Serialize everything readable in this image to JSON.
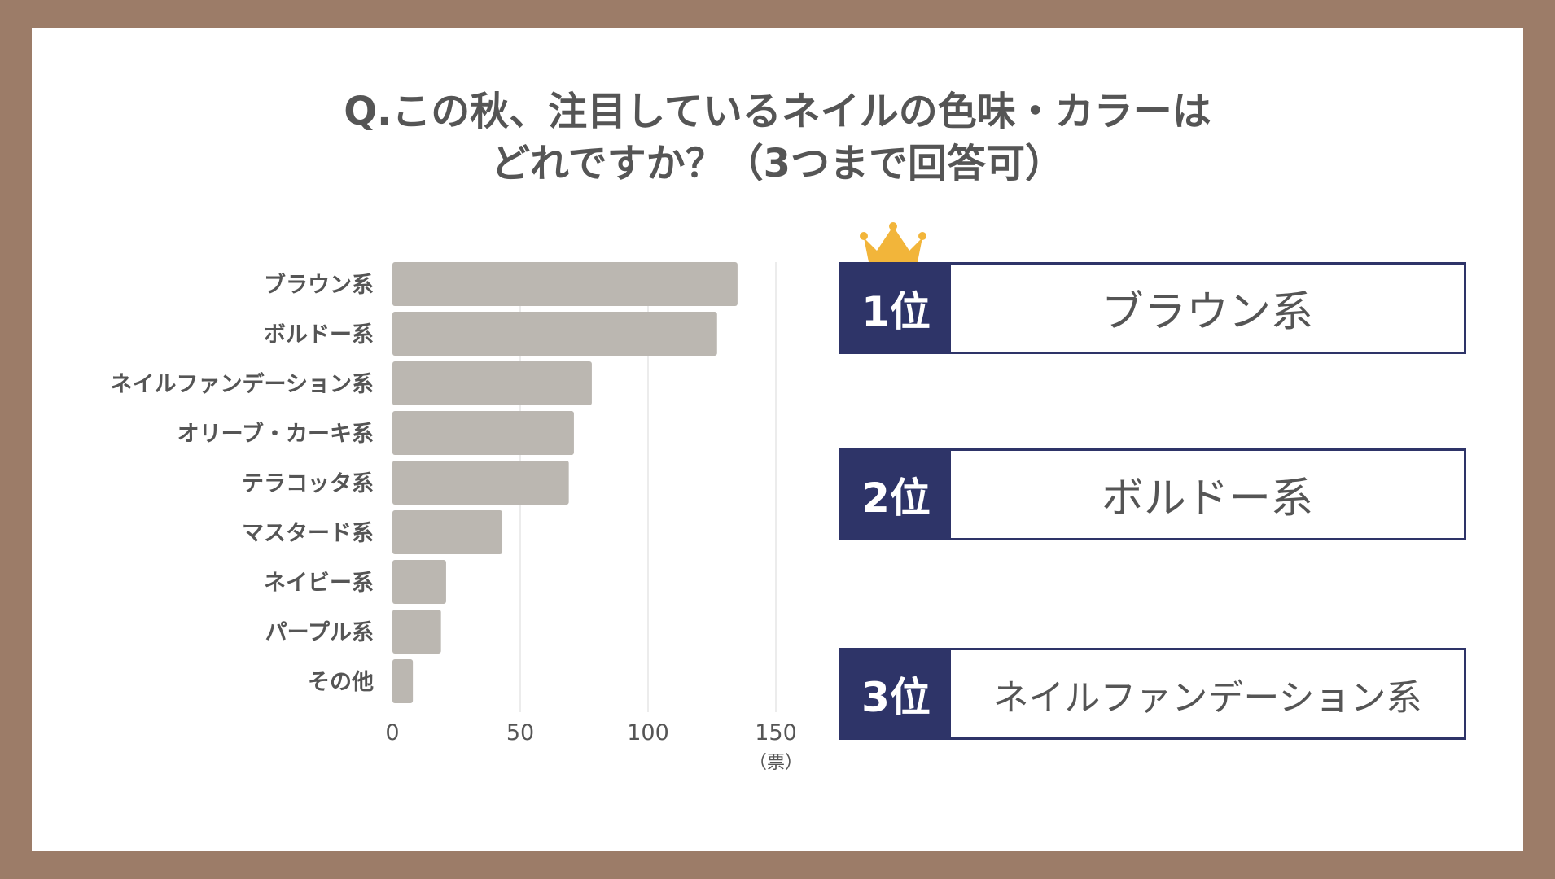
{
  "title": {
    "line1": "Q.この秋、注目しているネイルの色味・カラーは",
    "line2": "どれですか？（3つまで回答可）"
  },
  "chart_data": {
    "type": "bar",
    "orientation": "horizontal",
    "categories": [
      "ブラウン系",
      "ボルドー系",
      "ネイルファンデーション系",
      "オリーブ・カーキ系",
      "テラコッタ系",
      "マスタード系",
      "ネイビー系",
      "パープル系",
      "その他"
    ],
    "values": [
      135,
      127,
      78,
      71,
      69,
      43,
      21,
      19,
      8
    ],
    "xlim": [
      0,
      150
    ],
    "xticks": [
      "0",
      "50",
      "100",
      "150"
    ],
    "unit_label": "（票）",
    "grid": true,
    "bar_color": "#bbb7b1"
  },
  "ranking": [
    {
      "rank": "1位",
      "name": "ブラウン系"
    },
    {
      "rank": "2位",
      "name": "ボルドー系"
    },
    {
      "rank": "3位",
      "name": "ネイルファンデーション系"
    }
  ],
  "colors": {
    "frame": "#9c7c68",
    "rank_navy": "#2e3468",
    "crown": "#f2b53a"
  },
  "icons": {
    "crown": "crown-icon"
  }
}
